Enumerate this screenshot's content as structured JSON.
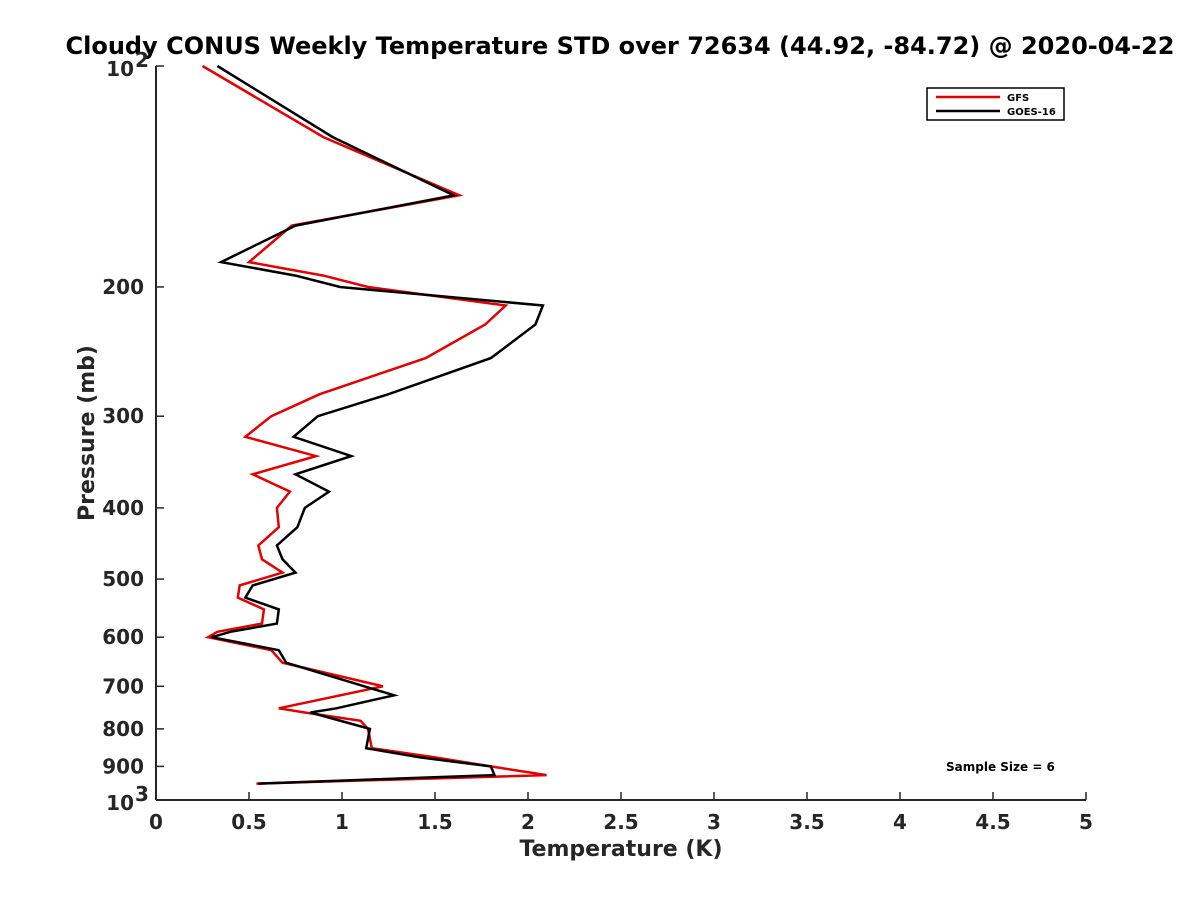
{
  "chart_data": {
    "type": "line",
    "title": "Cloudy CONUS Weekly Temperature STD over 72634 (44.92, -84.72) @ 2020-04-22",
    "xlabel": "Temperature (K)",
    "ylabel": "Pressure (mb)",
    "xlim": [
      0,
      5
    ],
    "ylim": [
      100,
      1000
    ],
    "y_scale": "log",
    "y_reversed": true,
    "grid": false,
    "legend_position": "top-right",
    "x_ticks": [
      {
        "value": 0,
        "label": "0"
      },
      {
        "value": 0.5,
        "label": "0.5"
      },
      {
        "value": 1,
        "label": "1"
      },
      {
        "value": 1.5,
        "label": "1.5"
      },
      {
        "value": 2,
        "label": "2"
      },
      {
        "value": 2.5,
        "label": "2.5"
      },
      {
        "value": 3,
        "label": "3"
      },
      {
        "value": 3.5,
        "label": "3.5"
      },
      {
        "value": 4,
        "label": "4"
      },
      {
        "value": 4.5,
        "label": "4.5"
      },
      {
        "value": 5,
        "label": "5"
      }
    ],
    "y_ticks": [
      {
        "value": 100,
        "base": "10",
        "exp": "2"
      },
      {
        "value": 200,
        "label": "200"
      },
      {
        "value": 300,
        "label": "300"
      },
      {
        "value": 400,
        "label": "400"
      },
      {
        "value": 500,
        "label": "500"
      },
      {
        "value": 600,
        "label": "600"
      },
      {
        "value": 700,
        "label": "700"
      },
      {
        "value": 800,
        "label": "800"
      },
      {
        "value": 900,
        "label": "900"
      },
      {
        "value": 1000,
        "base": "10",
        "exp": "3"
      }
    ],
    "series": [
      {
        "name": "GFS",
        "color": "#e00000",
        "points": [
          [
            0.25,
            100
          ],
          [
            0.9,
            125
          ],
          [
            1.63,
            150
          ],
          [
            0.73,
            165
          ],
          [
            0.5,
            185
          ],
          [
            0.9,
            193
          ],
          [
            1.14,
            200
          ],
          [
            1.88,
            212
          ],
          [
            1.77,
            225
          ],
          [
            1.45,
            250
          ],
          [
            0.88,
            280
          ],
          [
            0.62,
            300
          ],
          [
            0.48,
            320
          ],
          [
            0.86,
            340
          ],
          [
            0.52,
            360
          ],
          [
            0.72,
            380
          ],
          [
            0.65,
            400
          ],
          [
            0.66,
            425
          ],
          [
            0.55,
            450
          ],
          [
            0.57,
            470
          ],
          [
            0.68,
            490
          ],
          [
            0.45,
            510
          ],
          [
            0.44,
            530
          ],
          [
            0.58,
            550
          ],
          [
            0.57,
            575
          ],
          [
            0.33,
            590
          ],
          [
            0.28,
            600
          ],
          [
            0.62,
            625
          ],
          [
            0.68,
            650
          ],
          [
            1.22,
            700
          ],
          [
            0.66,
            750
          ],
          [
            0.8,
            760
          ],
          [
            1.1,
            780
          ],
          [
            1.14,
            800
          ],
          [
            1.16,
            850
          ],
          [
            1.5,
            875
          ],
          [
            1.8,
            900
          ],
          [
            2.1,
            925
          ],
          [
            0.54,
            950
          ]
        ]
      },
      {
        "name": "GOES-16",
        "color": "#000000",
        "points": [
          [
            0.33,
            100
          ],
          [
            0.95,
            125
          ],
          [
            1.6,
            150
          ],
          [
            0.75,
            165
          ],
          [
            0.35,
            185
          ],
          [
            0.75,
            193
          ],
          [
            0.99,
            200
          ],
          [
            2.08,
            212
          ],
          [
            2.04,
            225
          ],
          [
            1.8,
            250
          ],
          [
            1.25,
            280
          ],
          [
            0.87,
            300
          ],
          [
            0.74,
            320
          ],
          [
            1.05,
            340
          ],
          [
            0.75,
            360
          ],
          [
            0.93,
            380
          ],
          [
            0.8,
            400
          ],
          [
            0.76,
            425
          ],
          [
            0.65,
            450
          ],
          [
            0.68,
            470
          ],
          [
            0.75,
            490
          ],
          [
            0.52,
            510
          ],
          [
            0.48,
            530
          ],
          [
            0.66,
            550
          ],
          [
            0.65,
            575
          ],
          [
            0.4,
            590
          ],
          [
            0.3,
            600
          ],
          [
            0.66,
            625
          ],
          [
            0.7,
            650
          ],
          [
            1.12,
            700
          ],
          [
            1.28,
            720
          ],
          [
            0.97,
            750
          ],
          [
            0.83,
            760
          ],
          [
            1.15,
            800
          ],
          [
            1.13,
            850
          ],
          [
            1.42,
            875
          ],
          [
            1.8,
            900
          ],
          [
            1.82,
            925
          ],
          [
            0.55,
            950
          ]
        ]
      }
    ],
    "annotations": [
      {
        "text": "Sample Size = 6"
      }
    ]
  }
}
